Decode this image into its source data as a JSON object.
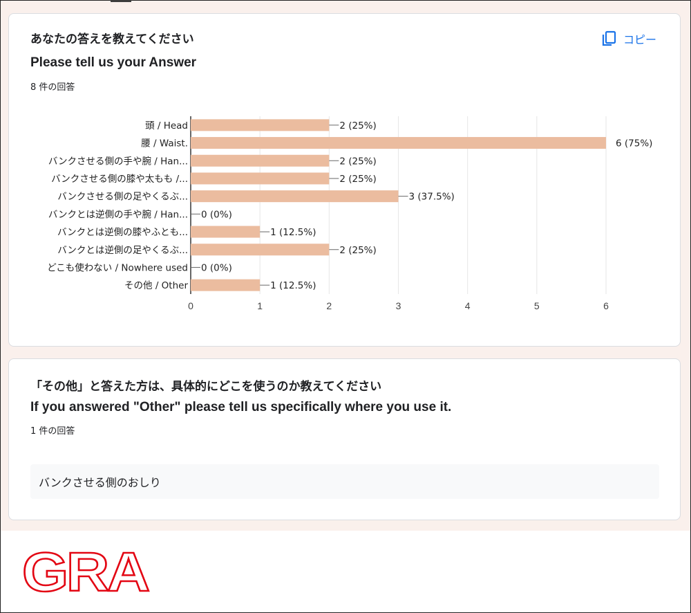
{
  "questions": [
    {
      "title": "あなたの答えを教えてください",
      "subtitle": "Please tell us your Answer",
      "count": "8 件の回答",
      "copy_label": "コピー",
      "copy_icon": "copy-icon"
    },
    {
      "title": "「その他」と答えた方は、具体的にどこを使うのか教えてください",
      "subtitle": "If you answered \"Other\" please tell us specifically where you use it.",
      "count": "1 件の回答",
      "responses": [
        "バンクさせる側のおしり"
      ]
    }
  ],
  "chart_data": {
    "type": "bar",
    "orientation": "horizontal",
    "categories": [
      "頭 / Head",
      "腰 / Waist.",
      "バンクさせる側の手や腕 / Han...",
      "バンクさせる側の膝や太もも /...",
      "バンクさせる側の足やくるぶ...",
      "バンクとは逆側の手や腕 / Han...",
      "バンクとは逆側の膝やふとも...",
      "バンクとは逆側の足やくるぶ...",
      "どこも使わない / Nowhere used",
      "その他 / Other"
    ],
    "values": [
      2,
      6,
      2,
      2,
      3,
      0,
      1,
      2,
      0,
      1
    ],
    "value_labels": [
      "2 (25%)",
      "6 (75%)",
      "2 (25%)",
      "2 (25%)",
      "3 (37.5%)",
      "0 (0%)",
      "1 (12.5%)",
      "2 (25%)",
      "0 (0%)",
      "1 (12.5%)"
    ],
    "xlim": [
      0,
      6
    ],
    "xticks": [
      "0",
      "1",
      "2",
      "3",
      "4",
      "5",
      "6"
    ],
    "grid": true,
    "bar_color": "#ebbc9f"
  },
  "logo_text": "GRA",
  "colors": {
    "accent": "#1a73e8",
    "logo": "#e30613",
    "page_bg": "#faf0ec"
  }
}
